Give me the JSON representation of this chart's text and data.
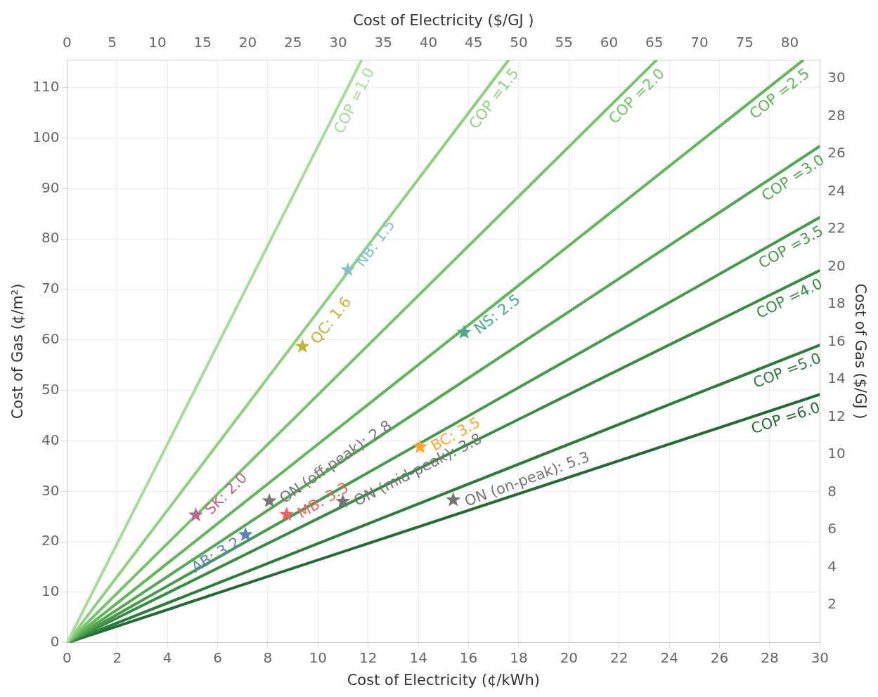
{
  "chart_data": {
    "type": "line",
    "xlabel": "Cost of Electricity (¢/kWh)",
    "x2label": "Cost of Electricity ($/GJ )",
    "ylabel": "Cost of Gas (¢/m²)",
    "y2label": "Cost of Gas ($/GJ )",
    "xlim": [
      0,
      30
    ],
    "xticks": [
      0,
      2,
      4,
      6,
      8,
      10,
      12,
      14,
      16,
      18,
      20,
      22,
      24,
      26,
      28,
      30
    ],
    "x2lim": [
      0,
      83.33
    ],
    "x2ticks": [
      0,
      5,
      10,
      15,
      20,
      25,
      30,
      35,
      40,
      45,
      50,
      55,
      60,
      65,
      70,
      75,
      80
    ],
    "ylim": [
      0,
      115.5
    ],
    "yticks": [
      0,
      10,
      20,
      30,
      40,
      50,
      60,
      70,
      80,
      90,
      100,
      110
    ],
    "y2lim": [
      0,
      31
    ],
    "y2ticks": [
      2,
      4,
      6,
      8,
      10,
      12,
      14,
      16,
      18,
      20,
      22,
      24,
      26,
      28,
      30
    ],
    "grid": true,
    "series": [
      {
        "name": "COP =1.0",
        "marker": "none",
        "color": "#a6dc9a",
        "x": [
          0,
          11.74
        ],
        "values": [
          0,
          115.5
        ]
      },
      {
        "name": "COP =1.5",
        "marker": "none",
        "color": "#8fd07f",
        "x": [
          0,
          17.6
        ],
        "values": [
          0,
          115.5
        ]
      },
      {
        "name": "COP =2.0",
        "marker": "none",
        "color": "#76c46a",
        "x": [
          0,
          23.5
        ],
        "values": [
          0,
          115.5
        ]
      },
      {
        "name": "COP =2.5",
        "marker": "none",
        "color": "#62b65a",
        "x": [
          0,
          29.35
        ],
        "values": [
          0,
          115.5
        ]
      },
      {
        "name": "COP =3.0",
        "marker": "none",
        "color": "#55a853",
        "x": [
          0,
          30
        ],
        "values": [
          0,
          98.4
        ]
      },
      {
        "name": "COP =3.5",
        "marker": "none",
        "color": "#479a4b",
        "x": [
          0,
          30
        ],
        "values": [
          0,
          84.3
        ]
      },
      {
        "name": "COP =4.0",
        "marker": "none",
        "color": "#3a8b44",
        "x": [
          0,
          30
        ],
        "values": [
          0,
          73.8
        ]
      },
      {
        "name": "COP =5.0",
        "marker": "none",
        "color": "#2e7b3c",
        "x": [
          0,
          30
        ],
        "values": [
          0,
          59
        ]
      },
      {
        "name": "COP =6.0",
        "marker": "none",
        "color": "#246a35",
        "x": [
          0,
          30
        ],
        "values": [
          0,
          49.2
        ]
      },
      {
        "name": "SK: 2.0",
        "type": "scatter",
        "marker": "star",
        "color": "#b86890",
        "x": [
          5.13
        ],
        "values": [
          25.3
        ]
      },
      {
        "name": "AB: 3.2",
        "type": "scatter",
        "marker": "star",
        "color": "#5b82bd",
        "x": [
          7.11
        ],
        "values": [
          21.4
        ]
      },
      {
        "name": "ON (off-peak): 2.8",
        "type": "scatter",
        "marker": "star",
        "color": "#757575",
        "x": [
          8.06
        ],
        "values": [
          28.1
        ]
      },
      {
        "name": "MB: 3.3",
        "type": "scatter",
        "marker": "star",
        "color": "#ee6560",
        "x": [
          8.75
        ],
        "values": [
          25.4
        ]
      },
      {
        "name": "ON (mid-peak): 3.8",
        "type": "scatter",
        "marker": "star",
        "color": "#757575",
        "x": [
          10.99
        ],
        "values": [
          28
        ]
      },
      {
        "name": "ON (on-peak): 5.3",
        "type": "scatter",
        "marker": "star",
        "color": "#757575",
        "x": [
          15.39
        ],
        "values": [
          28.3
        ]
      },
      {
        "name": "BC: 3.5",
        "type": "scatter",
        "marker": "star",
        "color": "#ffa42c",
        "x": [
          14.07
        ],
        "values": [
          38.8
        ]
      },
      {
        "name": "NS: 2.5",
        "type": "scatter",
        "marker": "star",
        "color": "#4aa98a",
        "x": [
          15.82
        ],
        "values": [
          61.5
        ]
      },
      {
        "name": "QC: 1.6",
        "type": "scatter",
        "marker": "star",
        "color": "#c4b232",
        "x": [
          9.38
        ],
        "values": [
          58.7
        ]
      },
      {
        "name": "NB: 1.5",
        "type": "scatter",
        "marker": "star",
        "color": "#88c0d0",
        "x": [
          11.19
        ],
        "values": [
          73.9
        ]
      }
    ]
  }
}
